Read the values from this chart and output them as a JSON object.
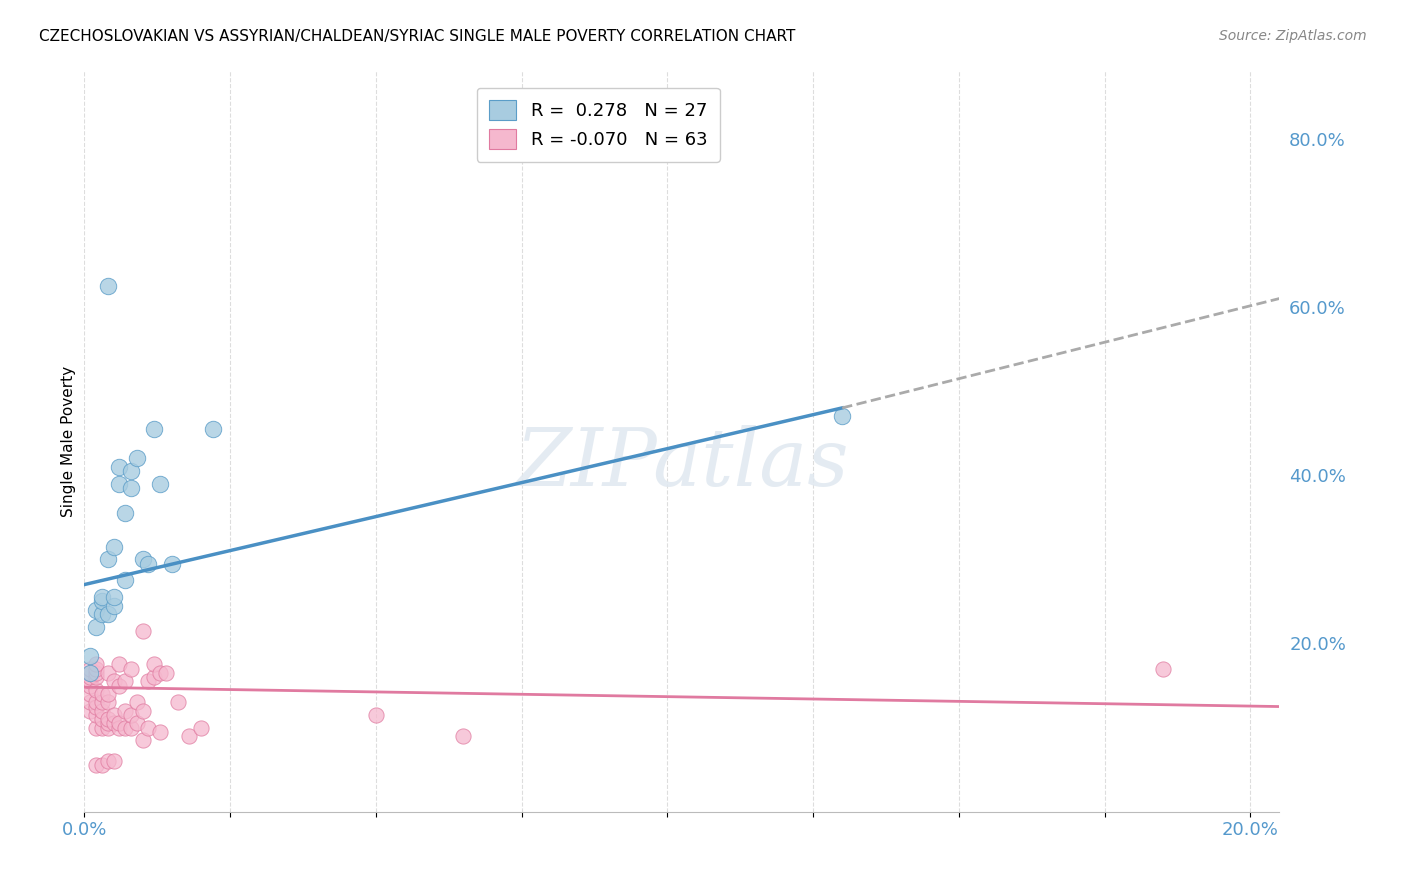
{
  "title": "CZECHOSLOVAKIAN VS ASSYRIAN/CHALDEAN/SYRIAC SINGLE MALE POVERTY CORRELATION CHART",
  "source": "Source: ZipAtlas.com",
  "ylabel": "Single Male Poverty",
  "watermark": "ZIPatlas",
  "legend_blue_r": "0.278",
  "legend_blue_n": "27",
  "legend_pink_r": "-0.070",
  "legend_pink_n": "63",
  "blue_scatter_x": [
    0.001,
    0.001,
    0.002,
    0.002,
    0.003,
    0.003,
    0.003,
    0.004,
    0.004,
    0.005,
    0.005,
    0.005,
    0.006,
    0.006,
    0.007,
    0.007,
    0.008,
    0.008,
    0.009,
    0.01,
    0.011,
    0.012,
    0.013,
    0.015,
    0.022,
    0.13,
    0.004
  ],
  "blue_scatter_y": [
    0.165,
    0.185,
    0.22,
    0.24,
    0.235,
    0.25,
    0.255,
    0.235,
    0.3,
    0.245,
    0.255,
    0.315,
    0.39,
    0.41,
    0.275,
    0.355,
    0.385,
    0.405,
    0.42,
    0.3,
    0.295,
    0.455,
    0.39,
    0.295,
    0.455,
    0.47,
    0.625
  ],
  "pink_scatter_x": [
    0.001,
    0.001,
    0.001,
    0.001,
    0.001,
    0.001,
    0.001,
    0.001,
    0.002,
    0.002,
    0.002,
    0.002,
    0.002,
    0.002,
    0.002,
    0.002,
    0.002,
    0.002,
    0.003,
    0.003,
    0.003,
    0.003,
    0.003,
    0.003,
    0.004,
    0.004,
    0.004,
    0.004,
    0.004,
    0.004,
    0.004,
    0.005,
    0.005,
    0.005,
    0.005,
    0.006,
    0.006,
    0.006,
    0.006,
    0.007,
    0.007,
    0.007,
    0.008,
    0.008,
    0.008,
    0.009,
    0.009,
    0.01,
    0.01,
    0.01,
    0.011,
    0.011,
    0.012,
    0.012,
    0.013,
    0.013,
    0.014,
    0.016,
    0.018,
    0.02,
    0.05,
    0.065,
    0.185
  ],
  "pink_scatter_y": [
    0.12,
    0.13,
    0.14,
    0.15,
    0.155,
    0.16,
    0.165,
    0.17,
    0.055,
    0.1,
    0.115,
    0.125,
    0.13,
    0.145,
    0.16,
    0.165,
    0.17,
    0.175,
    0.055,
    0.1,
    0.11,
    0.12,
    0.13,
    0.14,
    0.06,
    0.1,
    0.105,
    0.11,
    0.13,
    0.14,
    0.165,
    0.06,
    0.105,
    0.115,
    0.155,
    0.1,
    0.105,
    0.15,
    0.175,
    0.1,
    0.12,
    0.155,
    0.1,
    0.115,
    0.17,
    0.105,
    0.13,
    0.085,
    0.12,
    0.215,
    0.1,
    0.155,
    0.16,
    0.175,
    0.095,
    0.165,
    0.165,
    0.13,
    0.09,
    0.1,
    0.115,
    0.09,
    0.17
  ],
  "blue_line_x0": 0.0,
  "blue_line_x1": 0.13,
  "blue_line_y0": 0.27,
  "blue_line_y1": 0.48,
  "dash_line_x0": 0.13,
  "dash_line_x1": 0.205,
  "dash_line_y0": 0.48,
  "dash_line_y1": 0.61,
  "pink_line_x0": 0.0,
  "pink_line_x1": 0.205,
  "pink_line_y0": 0.148,
  "pink_line_y1": 0.125,
  "xlim": [
    0.0,
    0.205
  ],
  "ylim": [
    0.0,
    0.88
  ],
  "right_ytick_vals": [
    0.8,
    0.6,
    0.4,
    0.2
  ],
  "right_ytick_labels": [
    "80.0%",
    "60.0%",
    "40.0%",
    "20.0%"
  ],
  "grid_color": "#dddddd",
  "bg_color": "#ffffff",
  "blue_fill": "#a8cce0",
  "blue_edge": "#5b9dc8",
  "pink_fill": "#f5b8ce",
  "pink_edge": "#e07aa0",
  "line_blue_color": "#4a90c4",
  "line_pink_color": "#e07aa0",
  "line_dash_color": "#aaaaaa",
  "tick_color": "#5599cc",
  "title_fontsize": 11,
  "source_fontsize": 10,
  "tick_fontsize": 13,
  "ylabel_fontsize": 11,
  "legend_fontsize": 13
}
